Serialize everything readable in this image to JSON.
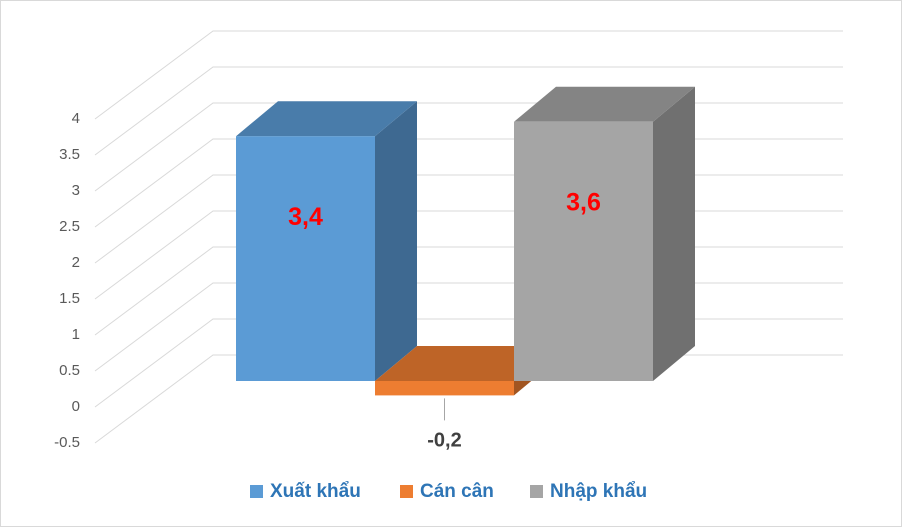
{
  "chart_data": {
    "type": "bar3d",
    "series": [
      {
        "name": "Xuất khẩu",
        "color": "#5b9bd5",
        "values": [
          3.4
        ],
        "value_labels": [
          "3,4"
        ]
      },
      {
        "name": "Cán cân",
        "color": "#ed7d31",
        "values": [
          -0.2
        ],
        "value_labels": [
          "-0,2"
        ]
      },
      {
        "name": "Nhập khẩu",
        "color": "#a5a5a5",
        "values": [
          3.6
        ],
        "value_labels": [
          "3,6"
        ]
      }
    ],
    "ylim": [
      -0.5,
      4
    ],
    "yticks": [
      -0.5,
      0,
      0.5,
      1,
      1.5,
      2,
      2.5,
      3,
      3.5,
      4
    ],
    "grid": true,
    "legend": "bottom"
  }
}
